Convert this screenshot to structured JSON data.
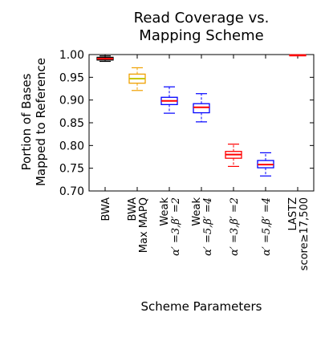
{
  "chart_data": {
    "type": "box",
    "title_lines": [
      "Read Coverage vs.",
      "Mapping Scheme"
    ],
    "xlabel": "Scheme Parameters",
    "ylabel_lines": [
      "Portion of Bases",
      "Mapped to Reference"
    ],
    "ylim": [
      0.7,
      1.0
    ],
    "yticks": [
      "0.70",
      "0.75",
      "0.80",
      "0.85",
      "0.90",
      "0.95",
      "1.00"
    ],
    "categories": [
      {
        "lines": [
          "BWA"
        ],
        "math": false
      },
      {
        "lines": [
          "BWA",
          "Max MAPQ"
        ],
        "math": false
      },
      {
        "lines": [
          "Weak",
          "α′ =3,β′ =2"
        ],
        "math": true
      },
      {
        "lines": [
          "Weak",
          "α′ =5,β′ =4"
        ],
        "math": true
      },
      {
        "lines": [
          "α′ =3,β′ =2"
        ],
        "math": true
      },
      {
        "lines": [
          "α′ =5,β′ =4"
        ],
        "math": true
      },
      {
        "lines": [
          "LASTZ",
          "score≥17,500"
        ],
        "math": false
      }
    ],
    "boxes": [
      {
        "whisker_low": 0.985,
        "q1": 0.988,
        "median": 0.991,
        "q3": 0.994,
        "whisker_high": 0.997,
        "box_color": "#000000",
        "median_color": "#ff0000"
      },
      {
        "whisker_low": 0.921,
        "q1": 0.937,
        "median": 0.947,
        "q3": 0.957,
        "whisker_high": 0.971,
        "box_color": "#f0a000",
        "median_color": "#c8c800"
      },
      {
        "whisker_low": 0.871,
        "q1": 0.89,
        "median": 0.898,
        "q3": 0.906,
        "whisker_high": 0.929,
        "box_color": "#0000ff",
        "median_color": "#ff0000"
      },
      {
        "whisker_low": 0.852,
        "q1": 0.872,
        "median": 0.884,
        "q3": 0.892,
        "whisker_high": 0.914,
        "box_color": "#0000ff",
        "median_color": "#ff0000"
      },
      {
        "whisker_low": 0.754,
        "q1": 0.772,
        "median": 0.78,
        "q3": 0.787,
        "whisker_high": 0.803,
        "box_color": "#ff0000",
        "median_color": "#ff0000"
      },
      {
        "whisker_low": 0.733,
        "q1": 0.751,
        "median": 0.758,
        "q3": 0.767,
        "whisker_high": 0.784,
        "box_color": "#0000ff",
        "median_color": "#ff0000"
      },
      {
        "whisker_low": 0.999,
        "q1": 0.999,
        "median": 0.999,
        "q3": 0.999,
        "whisker_high": 0.999,
        "box_color": "#ff0000",
        "median_color": "#ff0000"
      }
    ],
    "grid": false,
    "legend": "none"
  }
}
